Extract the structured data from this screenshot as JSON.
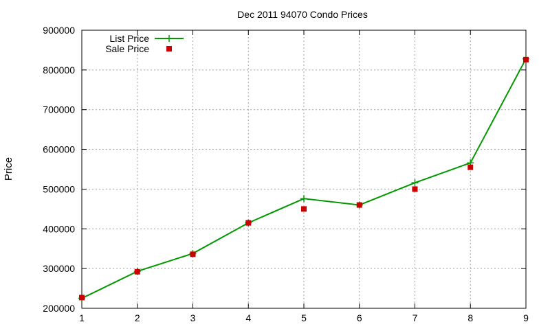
{
  "chart_data": {
    "type": "line",
    "title": "Dec 2011 94070 Condo Prices",
    "xlabel": "",
    "ylabel": "Price",
    "xlim": [
      1,
      9
    ],
    "ylim": [
      200000,
      900000
    ],
    "x_ticks": [
      "1",
      "2",
      "3",
      "4",
      "5",
      "6",
      "7",
      "8",
      "9"
    ],
    "y_ticks": [
      "200000",
      "300000",
      "400000",
      "500000",
      "600000",
      "700000",
      "800000",
      "900000"
    ],
    "grid": true,
    "legend_position": "top-left",
    "x": [
      1,
      2,
      3,
      4,
      5,
      6,
      7,
      8,
      9
    ],
    "series": [
      {
        "name": "List Price",
        "style": "line-with-plus-markers",
        "color": "#009900",
        "values": [
          225000,
          293000,
          338000,
          415000,
          476000,
          460000,
          516000,
          566000,
          828000
        ]
      },
      {
        "name": "Sale Price",
        "style": "square-markers",
        "color": "#cc0000",
        "values": [
          227000,
          292000,
          336000,
          415000,
          450000,
          460000,
          500000,
          555000,
          826000
        ]
      }
    ]
  }
}
